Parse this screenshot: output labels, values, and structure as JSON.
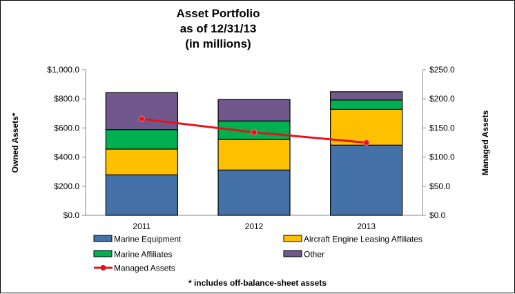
{
  "chart_data": {
    "type": "bar",
    "stacked": true,
    "title": [
      "Asset Portfolio",
      "as of 12/31/13",
      "(in millions)"
    ],
    "categories": [
      "2011",
      "2012",
      "2013"
    ],
    "ylabel": "Owned Assets*",
    "ylabel_right": "Managed Assets",
    "ylim": [
      0,
      1000
    ],
    "ylim_right": [
      0,
      250
    ],
    "yticks": [
      "$0.0",
      "$200.0",
      "$400.0",
      "$600.0",
      "$800.0",
      "$1,000.0"
    ],
    "yticks_values": [
      0,
      200,
      400,
      600,
      800,
      1000
    ],
    "yticks_right": [
      "$0.0",
      "$50.0",
      "$100.0",
      "$150.0",
      "$200.0",
      "$250.0"
    ],
    "yticks_right_values": [
      0,
      50,
      100,
      150,
      200,
      250
    ],
    "grid": false,
    "series": [
      {
        "name": "Marine Equipment",
        "color": "#4472A8",
        "axis": "left",
        "values": [
          278,
          311,
          482
        ]
      },
      {
        "name": "Aircraft Engine Leasing Affiliates",
        "color": "#FFC000",
        "axis": "left",
        "values": [
          177,
          210,
          246
        ]
      },
      {
        "name": "Marine Affiliates",
        "color": "#00B050",
        "axis": "left",
        "values": [
          134,
          127,
          64
        ]
      },
      {
        "name": "Other",
        "color": "#70588C",
        "axis": "left",
        "values": [
          254,
          147,
          57
        ]
      }
    ],
    "line_series": {
      "name": "Managed Assets",
      "color": "#E8101A",
      "axis": "right",
      "values": [
        165.5,
        142.5,
        124.8
      ]
    },
    "legend": {
      "placement": "bottom",
      "entries": [
        "Marine Equipment",
        "Aircraft Engine Leasing Affiliates",
        "Marine Affiliates",
        "Other",
        "Managed Assets"
      ]
    },
    "footnote": "* includes off-balance-sheet  assets"
  }
}
